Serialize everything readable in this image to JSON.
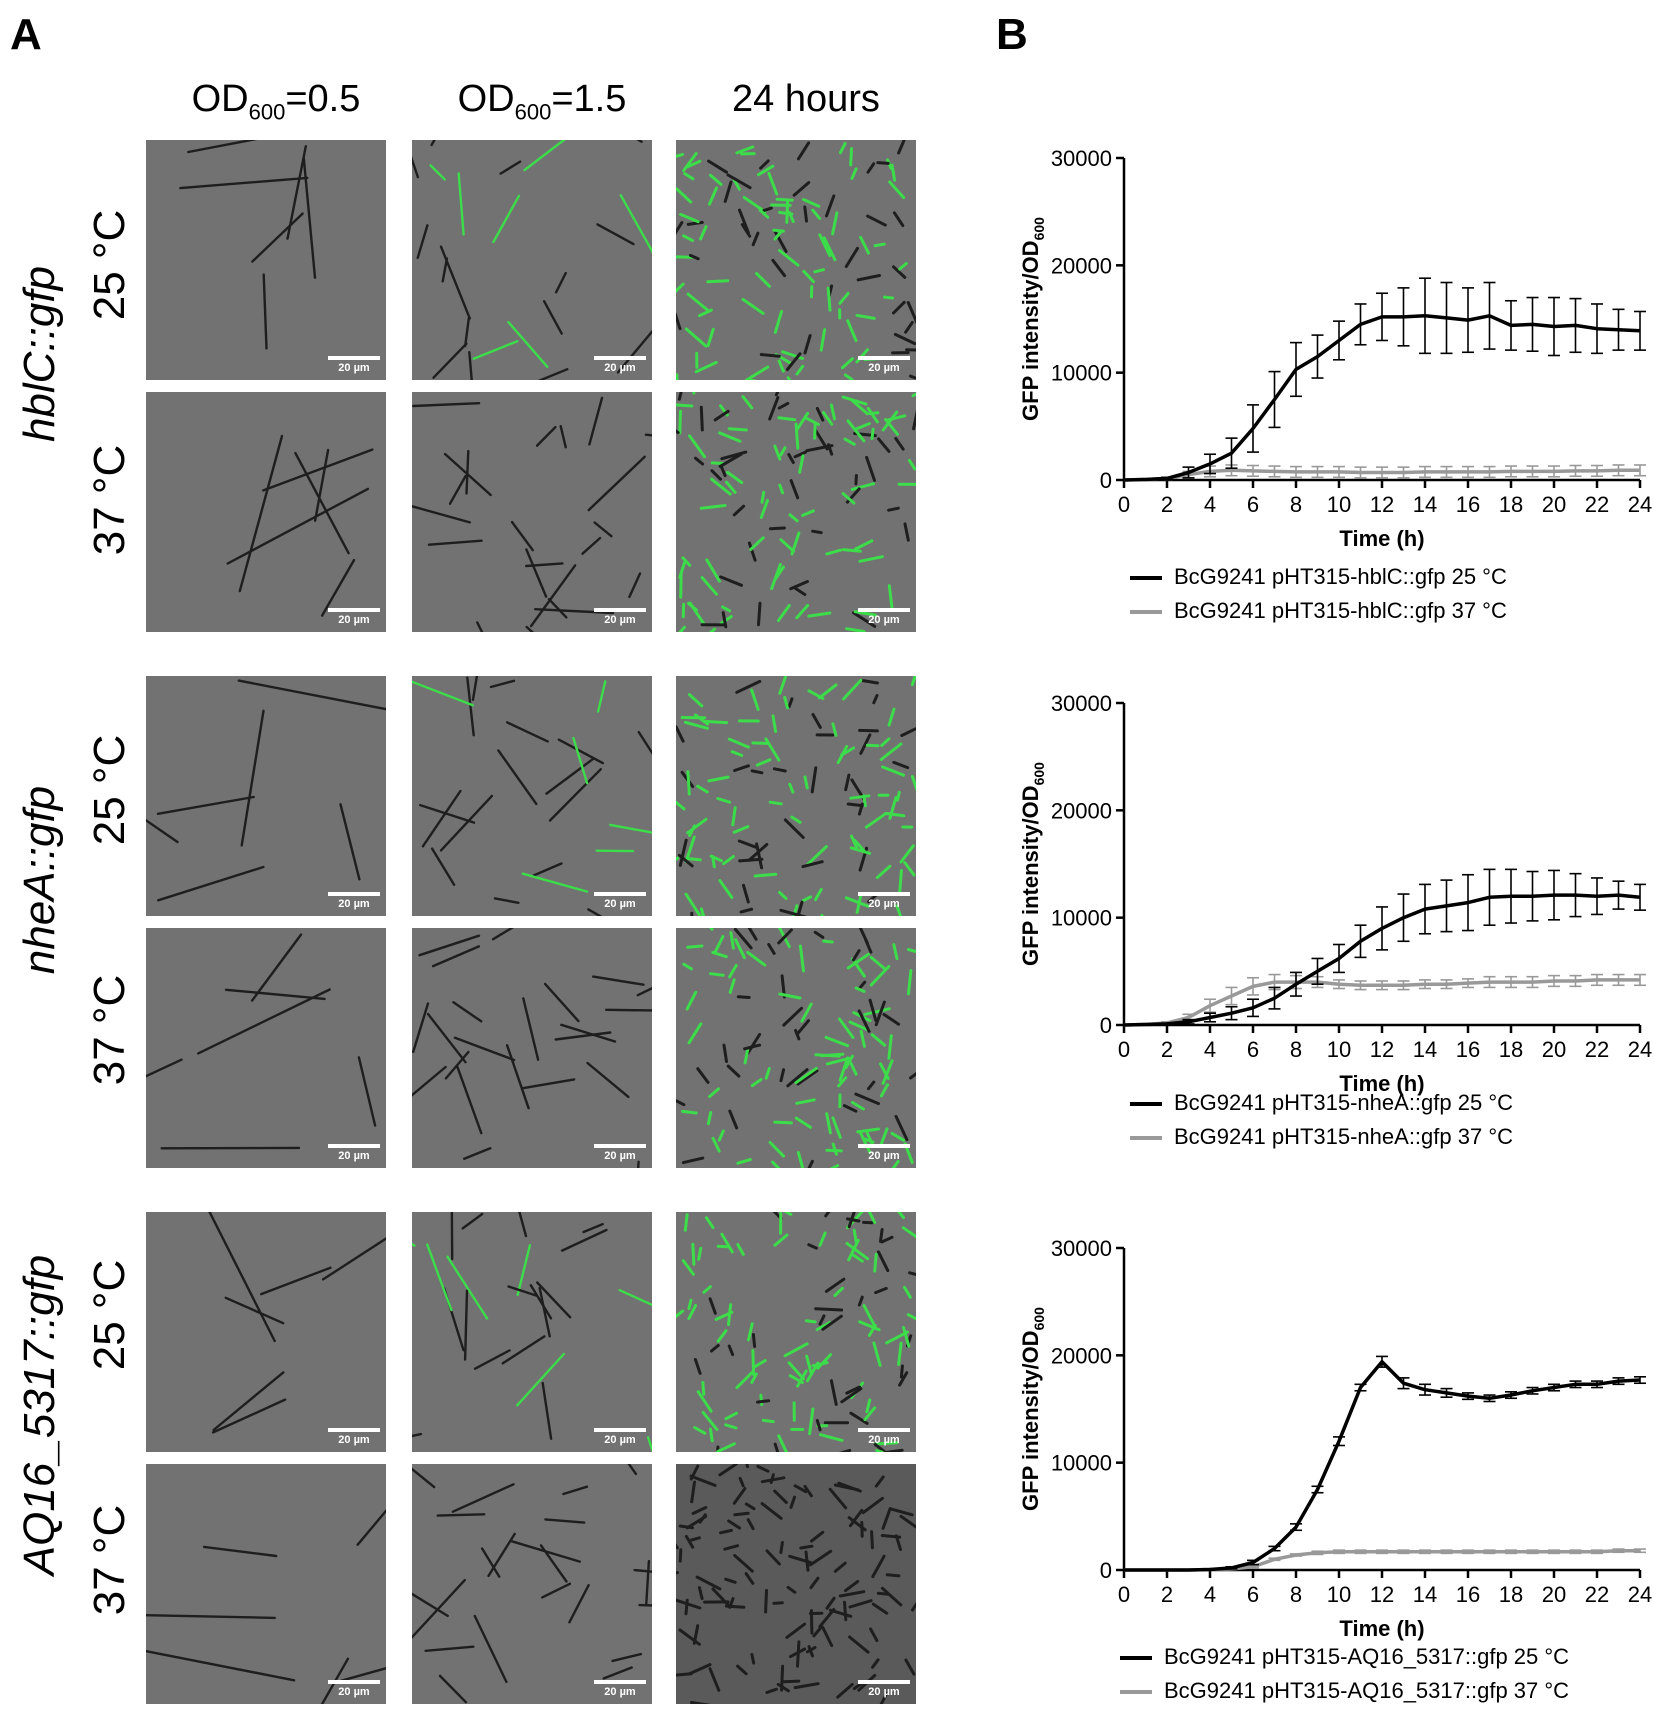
{
  "panel_labels": {
    "a": "A",
    "b": "B"
  },
  "panel_a": {
    "column_headers": [
      {
        "main": "OD",
        "sub": "600",
        "rest": "=0.5"
      },
      {
        "main": "OD",
        "sub": "600",
        "rest": "=1.5"
      },
      {
        "main": "24 hours",
        "sub": "",
        "rest": ""
      }
    ],
    "groups": [
      {
        "gene": "hblC::gfp",
        "temps": [
          "25 °C",
          "37 °C"
        ]
      },
      {
        "gene": "nheA::gfp",
        "temps": [
          "25 °C",
          "37 °C"
        ]
      },
      {
        "gene": "AQ16_5317::gfp",
        "temps": [
          "25 °C",
          "37 °C"
        ]
      }
    ],
    "scale_bar_label": "20 µm"
  },
  "chart_data": [
    {
      "type": "line",
      "xlabel": "Time (h)",
      "ylabel": "GFP intensity/OD600",
      "xlim": [
        0,
        24
      ],
      "ylim": [
        0,
        30000
      ],
      "xticks": [
        0,
        2,
        4,
        6,
        8,
        10,
        12,
        14,
        16,
        18,
        20,
        22,
        24
      ],
      "yticks": [
        0,
        10000,
        20000,
        30000
      ],
      "x": [
        0,
        1,
        2,
        3,
        4,
        5,
        6,
        7,
        8,
        9,
        10,
        11,
        12,
        13,
        14,
        15,
        16,
        17,
        18,
        19,
        20,
        21,
        22,
        23,
        24
      ],
      "series": [
        {
          "name": "BcG9241 pHT315-hblC::gfp 25 °C",
          "color": "#000000",
          "values": [
            0,
            50,
            150,
            700,
            1500,
            2500,
            4800,
            7500,
            10300,
            11500,
            13000,
            14500,
            15200,
            15200,
            15300,
            15100,
            14900,
            15300,
            14400,
            14500,
            14300,
            14400,
            14100,
            14000,
            13900
          ],
          "errors": [
            0,
            0,
            100,
            500,
            900,
            1400,
            2200,
            2600,
            2500,
            2000,
            1800,
            1900,
            2200,
            2700,
            3500,
            3300,
            3000,
            3100,
            2300,
            2500,
            2700,
            2500,
            2300,
            1900,
            1800
          ]
        },
        {
          "name": "BcG9241 pHT315-hblC::gfp 37 °C",
          "color": "#999999",
          "values": [
            0,
            50,
            150,
            500,
            800,
            900,
            850,
            800,
            750,
            750,
            750,
            700,
            700,
            700,
            750,
            750,
            750,
            750,
            800,
            800,
            800,
            850,
            850,
            900,
            900
          ],
          "errors": [
            0,
            0,
            100,
            300,
            500,
            500,
            500,
            500,
            500,
            500,
            500,
            500,
            500,
            500,
            500,
            500,
            500,
            500,
            500,
            500,
            500,
            500,
            500,
            500,
            500
          ]
        }
      ]
    },
    {
      "type": "line",
      "xlabel": "Time (h)",
      "ylabel": "GFP intensity/OD600",
      "xlim": [
        0,
        24
      ],
      "ylim": [
        0,
        30000
      ],
      "xticks": [
        0,
        2,
        4,
        6,
        8,
        10,
        12,
        14,
        16,
        18,
        20,
        22,
        24
      ],
      "yticks": [
        0,
        10000,
        20000,
        30000
      ],
      "x": [
        0,
        1,
        2,
        3,
        4,
        5,
        6,
        7,
        8,
        9,
        10,
        11,
        12,
        13,
        14,
        15,
        16,
        17,
        18,
        19,
        20,
        21,
        22,
        23,
        24
      ],
      "series": [
        {
          "name": "BcG9241 pHT315-nheA::gfp 25 °C",
          "color": "#000000",
          "values": [
            0,
            50,
            100,
            300,
            700,
            1100,
            1600,
            2500,
            3800,
            5000,
            6200,
            7800,
            9000,
            10000,
            10800,
            11100,
            11400,
            11900,
            12000,
            12000,
            12100,
            12100,
            12000,
            12100,
            11900
          ],
          "errors": [
            0,
            0,
            50,
            200,
            400,
            600,
            800,
            1000,
            1100,
            1200,
            1300,
            1500,
            2000,
            2200,
            2300,
            2400,
            2600,
            2600,
            2500,
            2300,
            2300,
            2000,
            1700,
            1300,
            1200
          ]
        },
        {
          "name": "BcG9241 pHT315-nheA::gfp 37 °C",
          "color": "#999999",
          "values": [
            0,
            50,
            200,
            700,
            1800,
            2700,
            3600,
            4000,
            4000,
            4000,
            3800,
            3700,
            3700,
            3700,
            3800,
            3800,
            3900,
            4000,
            4000,
            4000,
            4100,
            4100,
            4200,
            4200,
            4200
          ],
          "errors": [
            0,
            0,
            100,
            300,
            600,
            800,
            800,
            700,
            600,
            500,
            400,
            400,
            400,
            400,
            400,
            400,
            400,
            500,
            500,
            500,
            500,
            500,
            500,
            500,
            500
          ]
        }
      ]
    },
    {
      "type": "line",
      "xlabel": "Time (h)",
      "ylabel": "GFP intensity/OD600",
      "xlim": [
        0,
        24
      ],
      "ylim": [
        0,
        30000
      ],
      "xticks": [
        0,
        2,
        4,
        6,
        8,
        10,
        12,
        14,
        16,
        18,
        20,
        22,
        24
      ],
      "yticks": [
        0,
        10000,
        20000,
        30000
      ],
      "x": [
        0,
        1,
        2,
        3,
        4,
        5,
        6,
        7,
        8,
        9,
        10,
        11,
        12,
        13,
        14,
        15,
        16,
        17,
        18,
        19,
        20,
        21,
        22,
        23,
        24
      ],
      "series": [
        {
          "name": "BcG9241 pHT315-AQ16_5317::gfp 25 °C",
          "color": "#000000",
          "values": [
            0,
            0,
            0,
            0,
            50,
            200,
            700,
            2000,
            4000,
            7500,
            12000,
            17000,
            19400,
            17400,
            16800,
            16500,
            16200,
            16000,
            16300,
            16700,
            17000,
            17300,
            17300,
            17600,
            17700
          ],
          "errors": [
            0,
            0,
            0,
            0,
            0,
            100,
            200,
            200,
            300,
            300,
            400,
            300,
            500,
            500,
            500,
            400,
            300,
            300,
            300,
            300,
            300,
            300,
            300,
            300,
            300
          ]
        },
        {
          "name": "BcG9241 pHT315-AQ16_5317::gfp 37 °C",
          "color": "#999999",
          "values": [
            0,
            0,
            0,
            0,
            50,
            100,
            300,
            1000,
            1400,
            1600,
            1700,
            1700,
            1700,
            1700,
            1700,
            1700,
            1700,
            1700,
            1700,
            1700,
            1700,
            1700,
            1700,
            1800,
            1800
          ],
          "errors": [
            0,
            0,
            0,
            0,
            0,
            50,
            100,
            100,
            100,
            150,
            150,
            150,
            150,
            150,
            150,
            150,
            150,
            150,
            150,
            150,
            150,
            150,
            150,
            150,
            150
          ]
        }
      ]
    }
  ]
}
